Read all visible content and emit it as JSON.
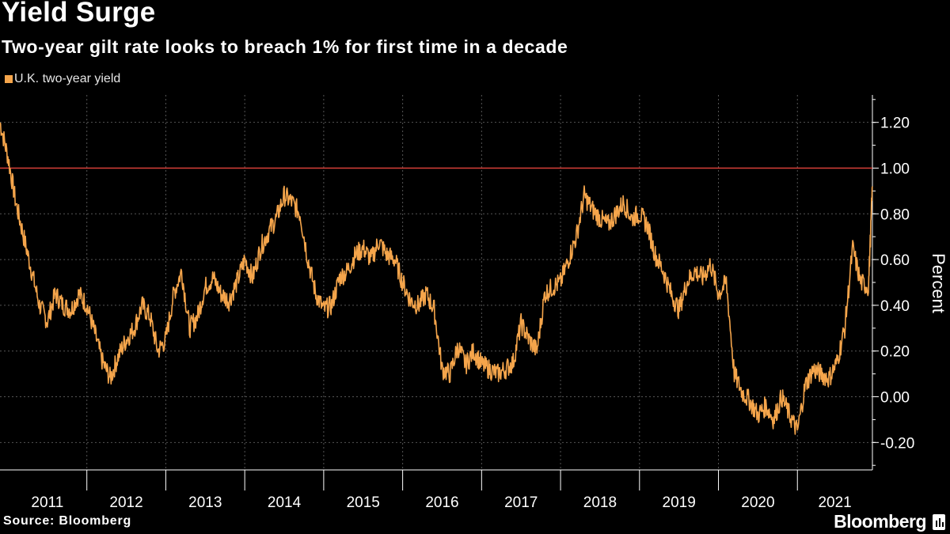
{
  "title": "Yield Surge",
  "subtitle": "Two-year gilt rate looks to breach 1% for first time in a decade",
  "source": "Source: Bloomberg",
  "brand": "Bloomberg",
  "colors": {
    "background": "#000000",
    "series": "#f5a54b",
    "reference_line": "#d8403a",
    "grid": "#555555"
  },
  "chart_data": {
    "type": "line",
    "title": "Yield Surge",
    "subtitle": "Two-year gilt rate looks to breach 1% for first time in a decade",
    "ylabel": "Percent",
    "xlabel": "",
    "ylim": [
      -0.32,
      1.32
    ],
    "xlim": [
      2010.9,
      2021.95
    ],
    "yticks": [
      -0.2,
      0.0,
      0.2,
      0.4,
      0.6,
      0.8,
      1.0,
      1.2
    ],
    "ytick_labels": [
      "-0.20",
      "0.00",
      "0.20",
      "0.40",
      "0.60",
      "0.80",
      "1.00",
      "1.20"
    ],
    "xtick_labels": [
      "2011",
      "2012",
      "2013",
      "2014",
      "2015",
      "2016",
      "2017",
      "2018",
      "2019",
      "2020",
      "2021"
    ],
    "grid": true,
    "legend_position": "top-left",
    "reference_line": {
      "y": 1.0
    },
    "series": [
      {
        "name": "U.K. two-year yield",
        "x": [
          2010.9,
          2011.0,
          2011.1,
          2011.2,
          2011.3,
          2011.4,
          2011.5,
          2011.6,
          2011.7,
          2011.8,
          2011.9,
          2012.0,
          2012.1,
          2012.2,
          2012.3,
          2012.4,
          2012.5,
          2012.6,
          2012.7,
          2012.8,
          2012.9,
          2013.0,
          2013.1,
          2013.2,
          2013.3,
          2013.4,
          2013.5,
          2013.6,
          2013.7,
          2013.8,
          2013.9,
          2014.0,
          2014.1,
          2014.2,
          2014.3,
          2014.4,
          2014.5,
          2014.6,
          2014.7,
          2014.8,
          2014.9,
          2015.0,
          2015.1,
          2015.2,
          2015.3,
          2015.4,
          2015.5,
          2015.6,
          2015.7,
          2015.8,
          2015.9,
          2016.0,
          2016.1,
          2016.2,
          2016.3,
          2016.4,
          2016.5,
          2016.6,
          2016.7,
          2016.8,
          2016.9,
          2017.0,
          2017.1,
          2017.2,
          2017.3,
          2017.4,
          2017.5,
          2017.6,
          2017.7,
          2017.8,
          2017.9,
          2018.0,
          2018.1,
          2018.2,
          2018.3,
          2018.4,
          2018.5,
          2018.6,
          2018.7,
          2018.8,
          2018.9,
          2019.0,
          2019.1,
          2019.2,
          2019.3,
          2019.4,
          2019.5,
          2019.6,
          2019.7,
          2019.8,
          2019.9,
          2020.0,
          2020.1,
          2020.2,
          2020.3,
          2020.4,
          2020.5,
          2020.6,
          2020.7,
          2020.8,
          2020.9,
          2021.0,
          2021.1,
          2021.2,
          2021.3,
          2021.4,
          2021.5,
          2021.6,
          2021.7,
          2021.8,
          2021.9,
          2021.95
        ],
        "values": [
          1.2,
          1.05,
          0.85,
          0.7,
          0.55,
          0.4,
          0.33,
          0.45,
          0.4,
          0.38,
          0.45,
          0.4,
          0.28,
          0.15,
          0.08,
          0.18,
          0.25,
          0.3,
          0.4,
          0.35,
          0.2,
          0.25,
          0.45,
          0.55,
          0.3,
          0.35,
          0.48,
          0.52,
          0.45,
          0.42,
          0.5,
          0.6,
          0.52,
          0.65,
          0.72,
          0.78,
          0.88,
          0.85,
          0.8,
          0.6,
          0.45,
          0.38,
          0.4,
          0.52,
          0.55,
          0.62,
          0.65,
          0.6,
          0.68,
          0.62,
          0.6,
          0.5,
          0.42,
          0.4,
          0.45,
          0.38,
          0.12,
          0.1,
          0.22,
          0.14,
          0.2,
          0.14,
          0.12,
          0.1,
          0.12,
          0.15,
          0.32,
          0.25,
          0.2,
          0.45,
          0.48,
          0.5,
          0.6,
          0.7,
          0.88,
          0.82,
          0.78,
          0.75,
          0.8,
          0.85,
          0.78,
          0.8,
          0.75,
          0.62,
          0.55,
          0.45,
          0.38,
          0.5,
          0.55,
          0.52,
          0.58,
          0.45,
          0.5,
          0.1,
          0.02,
          -0.02,
          -0.08,
          -0.04,
          -0.1,
          0.0,
          -0.08,
          -0.15,
          0.05,
          0.12,
          0.1,
          0.08,
          0.15,
          0.3,
          0.65,
          0.5,
          0.48,
          0.92
        ]
      }
    ]
  }
}
